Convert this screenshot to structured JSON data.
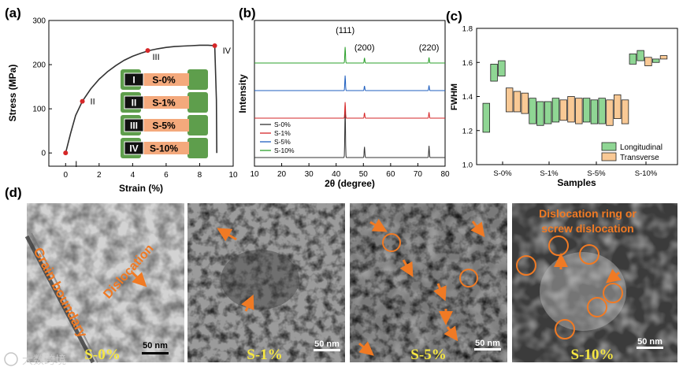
{
  "panel_labels": {
    "a": "(a)",
    "b": "(b)",
    "c": "(c)",
    "d": "(d)"
  },
  "chart_data": [
    {
      "type": "line",
      "panel": "a",
      "xlabel": "Strain (%)",
      "ylabel": "Stress (MPa)",
      "xlim": [
        -1,
        10
      ],
      "ylim": [
        -30,
        300
      ],
      "xticks": [
        0,
        2,
        4,
        6,
        8,
        10
      ],
      "yticks": [
        0,
        100,
        200,
        300
      ],
      "x": [
        0,
        0.3,
        0.6,
        1.0,
        1.5,
        2.0,
        2.5,
        3.0,
        3.5,
        4.0,
        4.5,
        5.0,
        5.5,
        6.0,
        6.5,
        7.0,
        7.5,
        8.0,
        8.5,
        8.9,
        9.0,
        9.02
      ],
      "y": [
        0,
        45,
        85,
        117,
        145,
        167,
        184,
        198,
        210,
        219,
        226,
        232,
        236,
        239,
        241,
        242,
        243,
        244,
        244,
        243,
        120,
        0
      ],
      "markers": [
        {
          "label": "I",
          "x": 0,
          "y": 0
        },
        {
          "label": "II",
          "x": 1.0,
          "y": 117
        },
        {
          "label": "III",
          "x": 4.9,
          "y": 232
        },
        {
          "label": "IV",
          "x": 8.9,
          "y": 243
        }
      ],
      "specimens": [
        {
          "numeral": "I",
          "name": "S-0%"
        },
        {
          "numeral": "II",
          "name": "S-1%"
        },
        {
          "numeral": "III",
          "name": "S-5%"
        },
        {
          "numeral": "IV",
          "name": "S-10%"
        }
      ],
      "line_color": "#333333",
      "marker_color": "#d62728",
      "specimen_colors": {
        "grip": "#5e9e4c",
        "gauge": "#f4a97c",
        "label_box": "#111111"
      }
    },
    {
      "type": "line",
      "panel": "b",
      "xlabel": "2θ (degree)",
      "ylabel": "Intensity",
      "xlim": [
        10,
        80
      ],
      "xticks": [
        10,
        20,
        30,
        40,
        50,
        60,
        70,
        80
      ],
      "peaks": [
        {
          "label": "(111)",
          "two_theta": 43.3
        },
        {
          "label": "(200)",
          "two_theta": 50.4
        },
        {
          "label": "(220)",
          "two_theta": 74.1
        }
      ],
      "series": [
        {
          "name": "S-0%",
          "color": "#333333",
          "offset": 0,
          "peak_heights": [
            1.0,
            0.22,
            0.24
          ]
        },
        {
          "name": "S-1%",
          "color": "#d62728",
          "offset": 1,
          "peak_heights": [
            0.6,
            0.2,
            0.22
          ]
        },
        {
          "name": "S-5%",
          "color": "#1f5fbf",
          "offset": 2,
          "peak_heights": [
            0.58,
            0.18,
            0.2
          ]
        },
        {
          "name": "S-10%",
          "color": "#2ca02c",
          "offset": 3,
          "peak_heights": [
            0.6,
            0.19,
            0.21
          ]
        }
      ],
      "legend_position": "bottom-left"
    },
    {
      "type": "bar",
      "panel": "c",
      "xlabel": "Samples",
      "ylabel": "FWHM",
      "ylim": [
        1.0,
        1.8
      ],
      "yticks": [
        1.0,
        1.2,
        1.4,
        1.6,
        1.8
      ],
      "categories": [
        "S-0%",
        "S-1%",
        "S-5%",
        "S-10%"
      ],
      "series": [
        {
          "name": "Longitudinal",
          "color": "#8fd694"
        },
        {
          "name": "Transverse",
          "color": "#f9c995"
        }
      ],
      "boxes": [
        {
          "series": 0,
          "low": 1.19,
          "high": 1.36
        },
        {
          "series": 0,
          "low": 1.49,
          "high": 1.59
        },
        {
          "series": 0,
          "low": 1.52,
          "high": 1.61
        },
        {
          "series": 1,
          "low": 1.31,
          "high": 1.45
        },
        {
          "series": 1,
          "low": 1.31,
          "high": 1.43
        },
        {
          "series": 1,
          "low": 1.3,
          "high": 1.42
        },
        {
          "series": 0,
          "low": 1.24,
          "high": 1.39
        },
        {
          "series": 0,
          "low": 1.23,
          "high": 1.37
        },
        {
          "series": 0,
          "low": 1.24,
          "high": 1.37
        },
        {
          "series": 0,
          "low": 1.25,
          "high": 1.39
        },
        {
          "series": 1,
          "low": 1.26,
          "high": 1.38
        },
        {
          "series": 1,
          "low": 1.25,
          "high": 1.4
        },
        {
          "series": 1,
          "low": 1.24,
          "high": 1.39
        },
        {
          "series": 0,
          "low": 1.25,
          "high": 1.39
        },
        {
          "series": 0,
          "low": 1.24,
          "high": 1.38
        },
        {
          "series": 0,
          "low": 1.24,
          "high": 1.39
        },
        {
          "series": 1,
          "low": 1.23,
          "high": 1.38
        },
        {
          "series": 1,
          "low": 1.27,
          "high": 1.41
        },
        {
          "series": 1,
          "low": 1.24,
          "high": 1.38
        },
        {
          "series": 0,
          "low": 1.59,
          "high": 1.65
        },
        {
          "series": 0,
          "low": 1.61,
          "high": 1.67
        },
        {
          "series": 1,
          "low": 1.58,
          "high": 1.63
        },
        {
          "series": 0,
          "low": 1.6,
          "high": 1.62
        },
        {
          "series": 1,
          "low": 1.62,
          "high": 1.64
        }
      ],
      "legend_position": "bottom-right"
    }
  ],
  "tem": [
    {
      "name": "S-0%",
      "caption": "S-0%",
      "scale": "50 nm",
      "annotations": [
        "Grain boundary",
        "Dislocation"
      ]
    },
    {
      "name": "S-1%",
      "caption": "S-1%",
      "scale": "50 nm",
      "annotations": []
    },
    {
      "name": "S-5%",
      "caption": "S-5%",
      "scale": "50 nm",
      "annotations": []
    },
    {
      "name": "S-10%",
      "caption": "S-10%",
      "scale": "50 nm",
      "annotations": [
        "Dislocation ring or",
        "screw dislocation"
      ]
    }
  ],
  "watermark": "大数跨境",
  "colors": {
    "annotation": "#f07a24",
    "caption": "#f5e642"
  }
}
